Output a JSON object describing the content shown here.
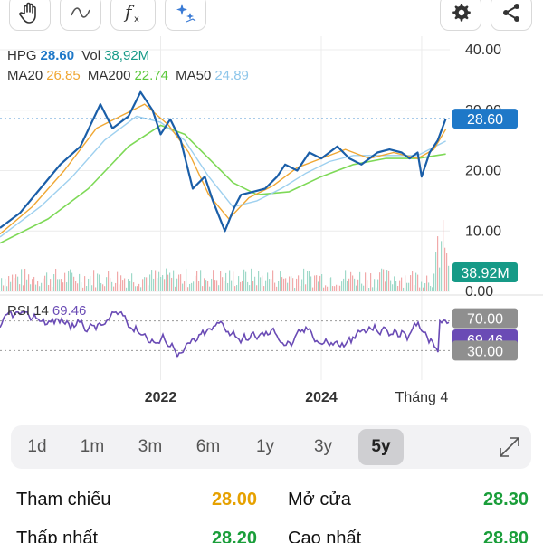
{
  "toolbar": {
    "tools": [
      {
        "icon": "hand-icon"
      },
      {
        "icon": "wave-icon"
      },
      {
        "icon": "function-icon"
      },
      {
        "icon": "sparkle-icon"
      }
    ],
    "actions": [
      {
        "icon": "gear-icon"
      },
      {
        "icon": "share-icon"
      }
    ]
  },
  "legend": {
    "symbol": "HPG",
    "price": "28.60",
    "vol_label": "Vol",
    "vol_value": "38,92M",
    "ma20_label": "MA20",
    "ma20_value": "26.85",
    "ma200_label": "MA200",
    "ma200_value": "22.74",
    "ma50_label": "MA50",
    "ma50_value": "24.89",
    "rsi_label": "RSI 14",
    "rsi_value": "69.46"
  },
  "colors": {
    "price_line": "#1a5ea8",
    "ma20": "#f0a733",
    "ma200": "#7ed957",
    "ma50": "#9ed0ef",
    "price_badge": "#1e78c8",
    "volume_badge": "#169a87",
    "rsi": "#6a4bb5",
    "rsi_badge_gray": "#8f8f8f",
    "stat_orange": "#e6a100",
    "stat_green": "#1a9e3a"
  },
  "chart_data": {
    "type": "line",
    "price_axis": {
      "ticks": [
        "40.00",
        "30.00",
        "20.00",
        "10.00",
        "0.00"
      ],
      "ylim": [
        0,
        40
      ]
    },
    "x_labels": [
      "2022",
      "2024",
      "Tháng 4"
    ],
    "current_price_badge": "28.60",
    "volume_badge": "38.92M",
    "rsi_axis": {
      "badges": [
        "70.00",
        "69.46",
        "30.00"
      ],
      "ylim": [
        0,
        100
      ]
    },
    "series": [
      {
        "name": "HPG",
        "points": [
          [
            2020.0,
            10.5
          ],
          [
            2020.25,
            13
          ],
          [
            2020.5,
            17
          ],
          [
            2020.75,
            21
          ],
          [
            2021.0,
            24
          ],
          [
            2021.25,
            31
          ],
          [
            2021.4,
            27
          ],
          [
            2021.6,
            29
          ],
          [
            2021.75,
            33
          ],
          [
            2021.9,
            30
          ],
          [
            2022.0,
            26
          ],
          [
            2022.12,
            28.5
          ],
          [
            2022.25,
            25
          ],
          [
            2022.4,
            17
          ],
          [
            2022.55,
            19
          ],
          [
            2022.65,
            15
          ],
          [
            2022.8,
            10
          ],
          [
            2022.92,
            14
          ],
          [
            2023.0,
            16
          ],
          [
            2023.15,
            16.5
          ],
          [
            2023.3,
            17
          ],
          [
            2023.45,
            19
          ],
          [
            2023.55,
            21
          ],
          [
            2023.7,
            20
          ],
          [
            2023.85,
            23
          ],
          [
            2024.0,
            22
          ],
          [
            2024.2,
            24
          ],
          [
            2024.35,
            22
          ],
          [
            2024.5,
            21
          ],
          [
            2024.7,
            23
          ],
          [
            2024.85,
            23.5
          ],
          [
            2025.0,
            23
          ],
          [
            2025.1,
            22
          ],
          [
            2025.2,
            23
          ],
          [
            2025.25,
            19
          ],
          [
            2025.35,
            23
          ],
          [
            2025.45,
            25
          ],
          [
            2025.55,
            28.6
          ]
        ]
      },
      {
        "name": "MA20",
        "points": [
          [
            2020.0,
            9.5
          ],
          [
            2020.4,
            14
          ],
          [
            2020.8,
            20
          ],
          [
            2021.2,
            27
          ],
          [
            2021.5,
            29
          ],
          [
            2021.8,
            31
          ],
          [
            2022.1,
            27.5
          ],
          [
            2022.35,
            23
          ],
          [
            2022.6,
            16
          ],
          [
            2022.85,
            12
          ],
          [
            2023.1,
            15.5
          ],
          [
            2023.4,
            17.5
          ],
          [
            2023.7,
            20.5
          ],
          [
            2024.0,
            22
          ],
          [
            2024.3,
            23.5
          ],
          [
            2024.6,
            22
          ],
          [
            2024.9,
            23
          ],
          [
            2025.2,
            22
          ],
          [
            2025.4,
            23.5
          ],
          [
            2025.55,
            26.85
          ]
        ]
      },
      {
        "name": "MA50",
        "points": [
          [
            2020.0,
            9
          ],
          [
            2020.5,
            14
          ],
          [
            2020.9,
            19
          ],
          [
            2021.3,
            25
          ],
          [
            2021.7,
            29
          ],
          [
            2022.0,
            28
          ],
          [
            2022.3,
            25
          ],
          [
            2022.6,
            19
          ],
          [
            2022.9,
            14
          ],
          [
            2023.2,
            15
          ],
          [
            2023.5,
            17
          ],
          [
            2023.8,
            19.5
          ],
          [
            2024.1,
            21.5
          ],
          [
            2024.4,
            22.5
          ],
          [
            2024.8,
            22.5
          ],
          [
            2025.2,
            22.5
          ],
          [
            2025.55,
            24.89
          ]
        ]
      },
      {
        "name": "MA200",
        "points": [
          [
            2020.0,
            8
          ],
          [
            2020.6,
            12
          ],
          [
            2021.1,
            17
          ],
          [
            2021.6,
            24
          ],
          [
            2022.0,
            27.5
          ],
          [
            2022.3,
            26
          ],
          [
            2022.6,
            22
          ],
          [
            2022.9,
            18
          ],
          [
            2023.2,
            16
          ],
          [
            2023.6,
            16.5
          ],
          [
            2024.0,
            19
          ],
          [
            2024.4,
            21
          ],
          [
            2024.8,
            22
          ],
          [
            2025.2,
            22
          ],
          [
            2025.55,
            22.74
          ]
        ]
      }
    ]
  },
  "ranges": [
    "1d",
    "1m",
    "3m",
    "6m",
    "1y",
    "3y",
    "5y"
  ],
  "active_range": "5y",
  "stats": [
    {
      "label": "Tham chiếu",
      "value": "28.00",
      "color": "#e6a100"
    },
    {
      "label": "Mở cửa",
      "value": "28.30",
      "color": "#1a9e3a"
    },
    {
      "label": "Thấp nhất",
      "value": "28.20",
      "color": "#1a9e3a"
    },
    {
      "label": "Cao nhất",
      "value": "28.80",
      "color": "#1a9e3a"
    }
  ]
}
